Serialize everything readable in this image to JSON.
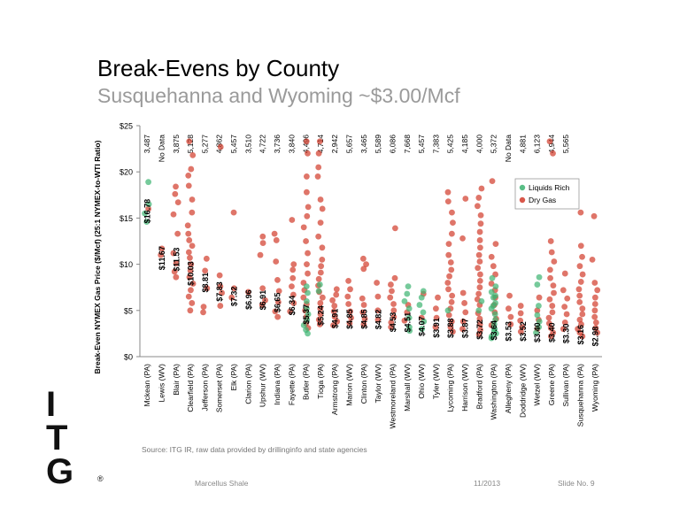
{
  "header": {
    "title": "Break-Evens by County",
    "subtitle": "Susquehanna and Wyoming ~$3.00/Mcf"
  },
  "chart_data": {
    "type": "scatter",
    "ylabel": "Break-Even NYMEX Gas Price ($/Mcf) (25:1 NYMEX-to-WTI Ratio)",
    "ylim": [
      0,
      25
    ],
    "yticks": [
      "$0",
      "$5",
      "$10",
      "$15",
      "$20",
      "$25"
    ],
    "ytick_values": [
      0,
      5,
      10,
      15,
      20,
      25
    ],
    "categories": [
      "Mckean (PA)",
      "Lewis (WV)",
      "Blair (PA)",
      "Clearfield (PA)",
      "Jefferson (PA)",
      "Somerset (PA)",
      "Elk (PA)",
      "Clarion (PA)",
      "Upshur (WV)",
      "Indiana (PA)",
      "Fayette (PA)",
      "Butler (PA)",
      "Tioga (PA)",
      "Armstrong (PA)",
      "Marion (WV)",
      "Clinton (PA)",
      "Taylor (WV)",
      "Westmoreland (PA)",
      "Marshall (WV)",
      "Ohio (WV)",
      "Tyler (WV)",
      "Lycoming (PA)",
      "Harrison (WV)",
      "Bradford (PA)",
      "Washington (PA)",
      "Allegheny (PA)",
      "Doddridge (WV)",
      "Wetzel (WV)",
      "Greene (PA)",
      "Sullivan (PA)",
      "Susquehanna (PA)",
      "Wyoming (PA)"
    ],
    "top_labels": [
      "3,487",
      "No Data",
      "3,875",
      "5,128",
      "5,277",
      "4,862",
      "5,457",
      "3,510",
      "4,722",
      "3,736",
      "3,840",
      "4,496",
      "4,714",
      "2,942",
      "5,657",
      "3,465",
      "5,589",
      "6,086",
      "7,668",
      "5,457",
      "7,383",
      "5,425",
      "4,185",
      "4,000",
      "5,372",
      "No Data",
      "4,881",
      "6,123",
      "4,944",
      "5,565",
      "",
      ""
    ],
    "break_even_labels": [
      "$16.78",
      "$11.67",
      "$11.53",
      "$10.03",
      "$8.81",
      "$7.83",
      "$7.32",
      "$6.96",
      "$6.91",
      "$6.65",
      "$6.34",
      "$5.37",
      "$5.24",
      "$4.91",
      "$4.85",
      "$4.85",
      "$4.82",
      "$4.53",
      "$4.51",
      "$4.07",
      "$3.91",
      "$3.88",
      "$3.87",
      "$3.72",
      "$3.64",
      "$3.53",
      "$3.52",
      "$3.40",
      "$3.40",
      "$3.30",
      "$3.16",
      "$2.98"
    ],
    "break_even_values": [
      16.78,
      11.67,
      11.53,
      10.03,
      8.81,
      7.83,
      7.32,
      6.96,
      6.91,
      6.65,
      6.34,
      5.37,
      5.24,
      4.91,
      4.85,
      4.85,
      4.82,
      4.53,
      4.51,
      4.07,
      3.91,
      3.88,
      3.87,
      3.72,
      3.64,
      3.53,
      3.52,
      3.4,
      3.4,
      3.3,
      3.16,
      2.98
    ],
    "series": [
      {
        "name": "Liquids Rich",
        "color": "#3cb371"
      },
      {
        "name": "Dry Gas",
        "color": "#d23a2a"
      }
    ],
    "legend_position": "top-right",
    "grid": false,
    "point_opacity": 0.7,
    "liquids_rich_points": [
      {
        "category": "Mckean (PA)",
        "values": [
          18.9,
          15.5,
          14.6,
          16.5
        ]
      },
      {
        "category": "Butler (PA)",
        "values": [
          7.6,
          6.9,
          6.0,
          5.2,
          4.6,
          4.0,
          3.4,
          2.9,
          2.5
        ]
      },
      {
        "category": "Tioga (PA)",
        "values": [
          7.8,
          7.1
        ]
      },
      {
        "category": "Marshall (WV)",
        "values": [
          7.6,
          6.8,
          6.0,
          5.2,
          4.2,
          3.2,
          2.8
        ]
      },
      {
        "category": "Ohio (WV)",
        "values": [
          7.1,
          6.4,
          5.6,
          4.8,
          3.8,
          3.0
        ]
      },
      {
        "category": "Lycoming (PA)",
        "values": [
          5.0
        ]
      },
      {
        "category": "Bradford (PA)",
        "values": [
          6.0,
          5.0
        ]
      },
      {
        "category": "Washington (PA)",
        "values": [
          8.5,
          7.6,
          7.0,
          6.4,
          5.8,
          5.2,
          4.6,
          4.0,
          3.5,
          3.0,
          2.5,
          2.0,
          2.2,
          2.8,
          6.6,
          5.5
        ]
      },
      {
        "category": "Wetzel (WV)",
        "values": [
          8.6,
          7.8,
          5.5,
          4.5,
          3.8,
          3.2,
          2.6
        ]
      }
    ],
    "dry_gas_points": [
      {
        "category": "Mckean (PA)",
        "values": [
          16.0
        ]
      },
      {
        "category": "Lewis (WV)",
        "values": [
          11.7,
          11.0
        ]
      },
      {
        "category": "Blair (PA)",
        "values": [
          18.4,
          17.6,
          16.7,
          15.4,
          13.3,
          11.2,
          10.1,
          9.2,
          8.6
        ]
      },
      {
        "category": "Clearfield (PA)",
        "values": [
          23.3,
          21.8,
          20.3,
          19.6,
          18.5,
          17.0,
          15.6,
          14.2,
          13.3,
          12.6,
          12.0,
          11.3,
          10.7,
          10.0,
          9.3,
          8.6,
          7.9,
          7.2,
          6.5,
          5.8,
          5.0
        ]
      },
      {
        "category": "Jefferson (PA)",
        "values": [
          10.6,
          9.3,
          7.4,
          5.4,
          4.8
        ]
      },
      {
        "category": "Somerset (PA)",
        "values": [
          22.7,
          8.8,
          7.6,
          6.9,
          5.5
        ]
      },
      {
        "category": "Elk (PA)",
        "values": [
          15.6,
          7.4,
          6.4
        ]
      },
      {
        "category": "Clarion (PA)",
        "values": [
          7.0
        ]
      },
      {
        "category": "Upshur (WV)",
        "values": [
          13.0,
          12.3,
          11.0,
          7.4,
          6.1,
          5.6
        ]
      },
      {
        "category": "Indiana (PA)",
        "values": [
          13.3,
          12.6,
          10.3,
          8.3,
          7.1,
          5.9,
          4.9,
          4.3
        ]
      },
      {
        "category": "Fayette (PA)",
        "values": [
          14.8,
          10.0,
          9.4,
          8.5,
          7.6,
          6.7,
          5.8,
          4.9
        ]
      },
      {
        "category": "Butler (PA)",
        "values": [
          23.3,
          22.0,
          19.5,
          17.8,
          16.2,
          15.2,
          14.0,
          12.5,
          11.2,
          10.0,
          9.0,
          8.0,
          7.2,
          6.4,
          5.7,
          5.0,
          4.3,
          3.6,
          3.1
        ]
      },
      {
        "category": "Tioga (PA)",
        "values": [
          23.3,
          22.0,
          20.5,
          19.5,
          17.0,
          16.0,
          14.5,
          13.0,
          11.8,
          10.5,
          9.8,
          9.1,
          8.4,
          7.7,
          7.0,
          6.4,
          5.8,
          5.2,
          4.6,
          4.0,
          3.5
        ]
      },
      {
        "category": "Armstrong (PA)",
        "values": [
          7.3,
          6.7,
          6.1,
          5.5,
          4.9,
          4.3,
          3.8,
          3.4
        ]
      },
      {
        "category": "Marion (WV)",
        "values": [
          8.2,
          7.3,
          6.5,
          5.7,
          4.9,
          4.2,
          3.6
        ]
      },
      {
        "category": "Clinton (PA)",
        "values": [
          10.6,
          10.0,
          9.5,
          6.3,
          5.6,
          4.8,
          4.1,
          3.5
        ]
      },
      {
        "category": "Taylor (WV)",
        "values": [
          8.0,
          6.5,
          5.0,
          4.0
        ]
      },
      {
        "category": "Westmoreland (PA)",
        "values": [
          13.9,
          8.5,
          7.8,
          7.1,
          6.4,
          5.7,
          5.0,
          4.3,
          3.7,
          3.2
        ]
      },
      {
        "category": "Marshall (WV)",
        "values": [
          5.6,
          4.8,
          3.9
        ]
      },
      {
        "category": "Ohio (WV)",
        "values": [
          6.8,
          4.2
        ]
      },
      {
        "category": "Tyler (WV)",
        "values": [
          6.4,
          5.2,
          4.2,
          3.2
        ]
      },
      {
        "category": "Lycoming (PA)",
        "values": [
          17.8,
          16.8,
          15.6,
          14.5,
          13.3,
          12.2,
          11.0,
          10.2,
          9.4,
          8.7,
          8.0,
          7.3,
          6.6,
          5.9,
          5.2,
          4.5,
          3.8,
          3.2,
          2.7
        ]
      },
      {
        "category": "Harrison (WV)",
        "values": [
          17.1,
          12.8,
          6.9,
          5.8,
          4.8,
          3.8,
          3.0
        ]
      },
      {
        "category": "Bradford (PA)",
        "values": [
          18.2,
          17.2,
          16.3,
          15.3,
          14.4,
          13.5,
          12.6,
          11.8,
          11.0,
          10.3,
          9.6,
          8.9,
          8.2,
          7.5,
          6.8,
          6.2,
          5.6,
          4.7,
          4.1,
          3.5,
          2.9,
          2.4
        ]
      },
      {
        "category": "Washington (PA)",
        "values": [
          19.0,
          12.2,
          10.8,
          9.8,
          8.9,
          7.9,
          7.2,
          6.4,
          5.6,
          4.8,
          4.1,
          3.4
        ]
      },
      {
        "category": "Allegheny (PA)",
        "values": [
          6.6,
          5.2,
          4.3,
          3.5
        ]
      },
      {
        "category": "Doddridge (WV)",
        "values": [
          5.5,
          4.7,
          3.9,
          3.2,
          2.7
        ]
      },
      {
        "category": "Wetzel (WV)",
        "values": [
          6.4,
          5.0,
          4.0,
          3.0
        ]
      },
      {
        "category": "Greene (PA)",
        "values": [
          23.3,
          22.0,
          12.5,
          11.3,
          10.3,
          9.4,
          8.5,
          7.7,
          6.9,
          6.2,
          5.5,
          4.8,
          4.2,
          3.6,
          3.1,
          2.6,
          2.2
        ]
      },
      {
        "category": "Sullivan (PA)",
        "values": [
          9.0,
          7.2,
          6.3,
          5.4,
          4.6,
          3.7,
          3.0
        ]
      },
      {
        "category": "Susquehanna (PA)",
        "values": [
          15.6,
          12.0,
          10.8,
          9.8,
          8.9,
          8.1,
          7.3,
          6.6,
          5.9,
          5.2,
          4.6,
          4.0,
          3.5,
          3.0,
          2.6,
          2.2
        ]
      },
      {
        "category": "Wyoming (PA)",
        "values": [
          15.2,
          10.5,
          8.0,
          7.2,
          6.4,
          5.7,
          5.0,
          4.3,
          3.7,
          3.1,
          2.6
        ]
      }
    ]
  },
  "source_note": "Source: ITG IR, raw data provided by drillinginfo and state agencies",
  "footer": {
    "left": "Marcellus Shale",
    "date": "11/2013",
    "slide": "Slide No. 9"
  },
  "logo": {
    "letters": [
      "I",
      "T",
      "G"
    ],
    "registered": "®"
  }
}
